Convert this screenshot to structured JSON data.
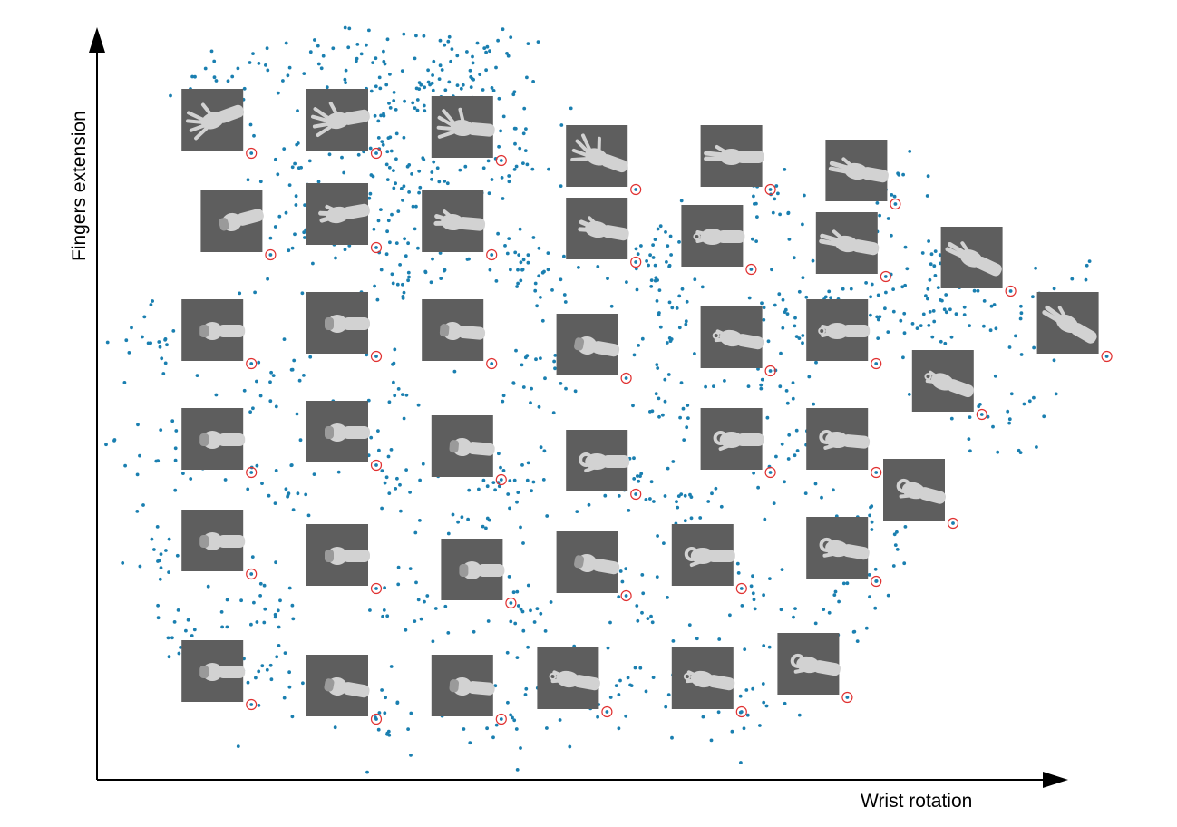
{
  "chart_data": {
    "type": "scatter",
    "xlabel": "Wrist rotation",
    "ylabel": "Fingers extension",
    "title": "",
    "grid": false,
    "legend": "none",
    "xlim": [
      0,
      100
    ],
    "ylim": [
      0,
      100
    ],
    "point_color": "#1a7fb0",
    "marker_color": "#e03030",
    "thumbnail": {
      "icon": "hand-pose-photo",
      "background": "#5e5e5e",
      "hand": "#d2d2d2"
    },
    "thumbnails": [
      {
        "x": 12,
        "y": 91,
        "pose": "open",
        "rot": -20
      },
      {
        "x": 25,
        "y": 91,
        "pose": "open",
        "rot": -10
      },
      {
        "x": 38,
        "y": 90,
        "pose": "open",
        "rot": 5
      },
      {
        "x": 52,
        "y": 86,
        "pose": "open",
        "rot": 20
      },
      {
        "x": 66,
        "y": 86,
        "pose": "flat",
        "rot": 0
      },
      {
        "x": 79,
        "y": 84,
        "pose": "flat",
        "rot": 10
      },
      {
        "x": 14,
        "y": 77,
        "pose": "fist",
        "rot": -15
      },
      {
        "x": 25,
        "y": 78,
        "pose": "half",
        "rot": -10
      },
      {
        "x": 37,
        "y": 77,
        "pose": "half",
        "rot": 5
      },
      {
        "x": 52,
        "y": 76,
        "pose": "half",
        "rot": 10
      },
      {
        "x": 64,
        "y": 75,
        "pose": "pinch",
        "rot": 0
      },
      {
        "x": 78,
        "y": 74,
        "pose": "flat",
        "rot": 10
      },
      {
        "x": 91,
        "y": 72,
        "pose": "flat",
        "rot": 25
      },
      {
        "x": 12,
        "y": 62,
        "pose": "fist",
        "rot": 0
      },
      {
        "x": 25,
        "y": 63,
        "pose": "fist",
        "rot": 0
      },
      {
        "x": 37,
        "y": 62,
        "pose": "fist",
        "rot": 5
      },
      {
        "x": 51,
        "y": 60,
        "pose": "fist",
        "rot": 10
      },
      {
        "x": 66,
        "y": 61,
        "pose": "pinch",
        "rot": 10
      },
      {
        "x": 77,
        "y": 62,
        "pose": "pinch",
        "rot": 0
      },
      {
        "x": 101,
        "y": 63,
        "pose": "flat",
        "rot": 30
      },
      {
        "x": 88,
        "y": 55,
        "pose": "pinch",
        "rot": 20
      },
      {
        "x": 12,
        "y": 47,
        "pose": "fist",
        "rot": 0
      },
      {
        "x": 25,
        "y": 48,
        "pose": "fist",
        "rot": 0
      },
      {
        "x": 38,
        "y": 46,
        "pose": "fist",
        "rot": 5
      },
      {
        "x": 52,
        "y": 44,
        "pose": "ok",
        "rot": 0
      },
      {
        "x": 66,
        "y": 47,
        "pose": "ok",
        "rot": 0
      },
      {
        "x": 77,
        "y": 47,
        "pose": "ok",
        "rot": 5
      },
      {
        "x": 85,
        "y": 40,
        "pose": "ok",
        "rot": 15
      },
      {
        "x": 12,
        "y": 33,
        "pose": "fist",
        "rot": 0
      },
      {
        "x": 25,
        "y": 31,
        "pose": "fist",
        "rot": 0
      },
      {
        "x": 39,
        "y": 29,
        "pose": "fist",
        "rot": 0
      },
      {
        "x": 51,
        "y": 30,
        "pose": "fist",
        "rot": 10
      },
      {
        "x": 63,
        "y": 31,
        "pose": "ok",
        "rot": 0
      },
      {
        "x": 77,
        "y": 32,
        "pose": "ok",
        "rot": 10
      },
      {
        "x": 12,
        "y": 15,
        "pose": "fist",
        "rot": 0
      },
      {
        "x": 25,
        "y": 13,
        "pose": "fist",
        "rot": 10
      },
      {
        "x": 38,
        "y": 13,
        "pose": "fist",
        "rot": 5
      },
      {
        "x": 49,
        "y": 14,
        "pose": "pinch",
        "rot": 10
      },
      {
        "x": 63,
        "y": 14,
        "pose": "pinch",
        "rot": 10
      },
      {
        "x": 74,
        "y": 16,
        "pose": "ok",
        "rot": 10
      }
    ],
    "cluster_points": [
      {
        "x": 13,
        "y": 96
      },
      {
        "x": 22,
        "y": 99
      },
      {
        "x": 28,
        "y": 98
      },
      {
        "x": 36,
        "y": 100
      },
      {
        "x": 42,
        "y": 99
      },
      {
        "x": 33,
        "y": 96
      },
      {
        "x": 30,
        "y": 92
      },
      {
        "x": 39,
        "y": 95
      },
      {
        "x": 29,
        "y": 85
      },
      {
        "x": 21,
        "y": 85
      },
      {
        "x": 44,
        "y": 87
      },
      {
        "x": 40,
        "y": 84
      },
      {
        "x": 33,
        "y": 83
      },
      {
        "x": 30,
        "y": 74
      },
      {
        "x": 20,
        "y": 73
      },
      {
        "x": 33,
        "y": 70
      },
      {
        "x": 44,
        "y": 72
      },
      {
        "x": 46,
        "y": 68
      },
      {
        "x": 56,
        "y": 70
      },
      {
        "x": 60,
        "y": 72
      },
      {
        "x": 71,
        "y": 80
      },
      {
        "x": 76,
        "y": 71
      },
      {
        "x": 83,
        "y": 79
      },
      {
        "x": 86,
        "y": 66
      },
      {
        "x": 90,
        "y": 64
      },
      {
        "x": 98,
        "y": 65
      },
      {
        "x": 104,
        "y": 66
      },
      {
        "x": 82,
        "y": 64
      },
      {
        "x": 72,
        "y": 63
      },
      {
        "x": 60,
        "y": 65
      },
      {
        "x": 6,
        "y": 60
      },
      {
        "x": 18,
        "y": 55
      },
      {
        "x": 31,
        "y": 56
      },
      {
        "x": 45,
        "y": 55
      },
      {
        "x": 58,
        "y": 53
      },
      {
        "x": 70,
        "y": 54
      },
      {
        "x": 94,
        "y": 50
      },
      {
        "x": 6,
        "y": 45
      },
      {
        "x": 19,
        "y": 40
      },
      {
        "x": 31,
        "y": 42
      },
      {
        "x": 44,
        "y": 40
      },
      {
        "x": 57,
        "y": 42
      },
      {
        "x": 71,
        "y": 43
      },
      {
        "x": 82,
        "y": 35
      },
      {
        "x": 6,
        "y": 30
      },
      {
        "x": 18,
        "y": 25
      },
      {
        "x": 32,
        "y": 24
      },
      {
        "x": 45,
        "y": 22
      },
      {
        "x": 57,
        "y": 24
      },
      {
        "x": 68,
        "y": 25
      },
      {
        "x": 78,
        "y": 24
      },
      {
        "x": 18,
        "y": 14
      },
      {
        "x": 31,
        "y": 8
      },
      {
        "x": 44,
        "y": 9
      },
      {
        "x": 56,
        "y": 11
      },
      {
        "x": 67,
        "y": 10
      },
      {
        "x": 10,
        "y": 20
      },
      {
        "x": 40,
        "y": 36
      },
      {
        "x": 62,
        "y": 37
      },
      {
        "x": 88,
        "y": 70
      }
    ]
  }
}
